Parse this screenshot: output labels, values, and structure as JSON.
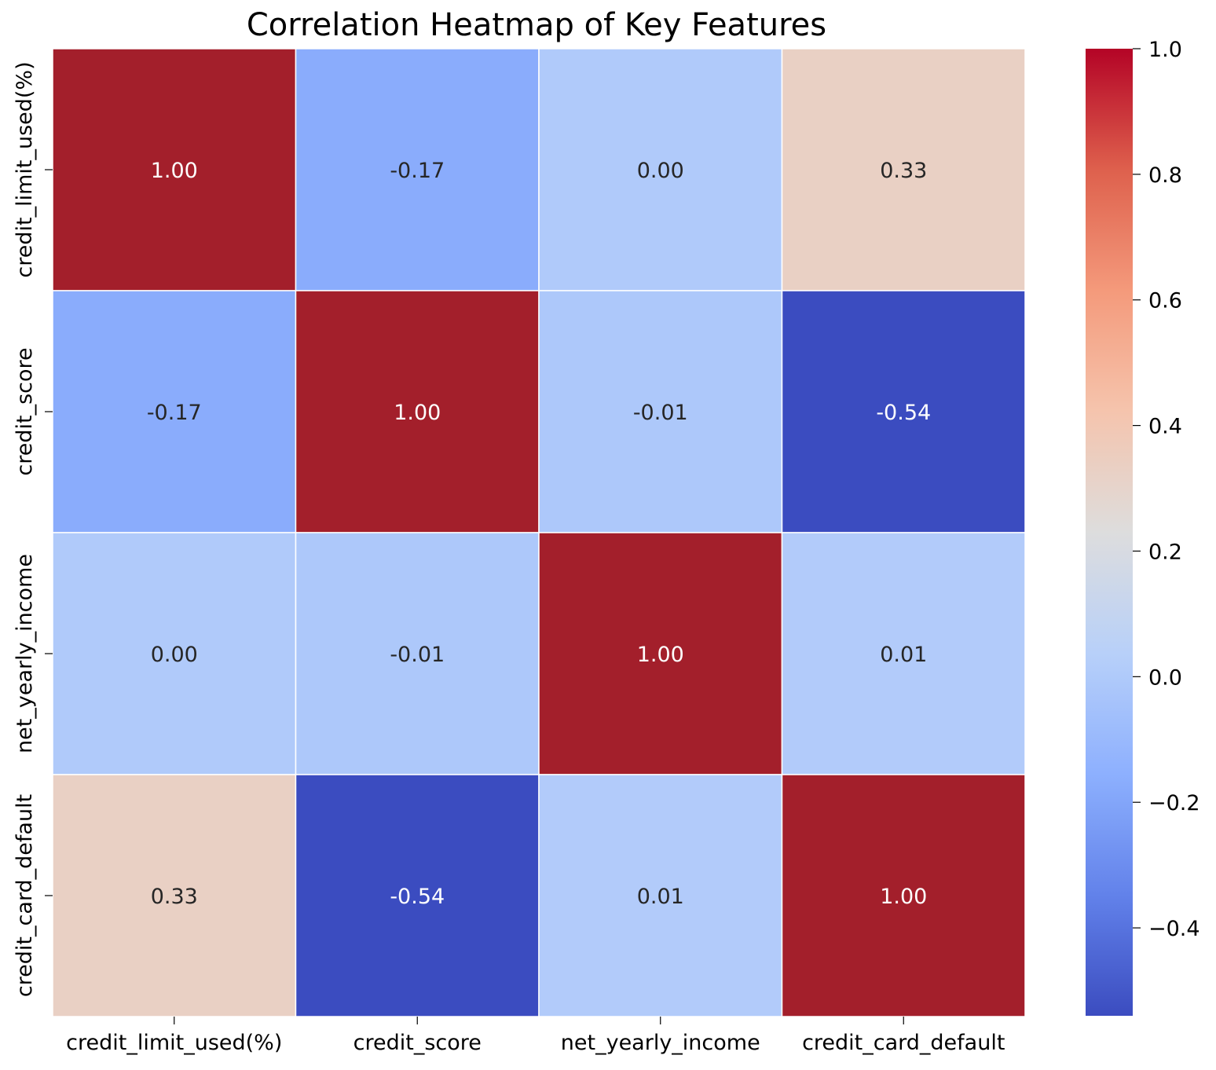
{
  "chart_data": {
    "type": "heatmap",
    "title": "Correlation Heatmap of Key Features",
    "xlabel": "",
    "ylabel": "",
    "row_labels": [
      "credit_limit_used(%)",
      "credit_score",
      "net_yearly_income",
      "credit_card_default"
    ],
    "col_labels": [
      "credit_limit_used(%)",
      "credit_score",
      "net_yearly_income",
      "credit_card_default"
    ],
    "matrix": [
      [
        1.0,
        -0.17,
        0.0,
        0.33
      ],
      [
        -0.17,
        1.0,
        -0.01,
        -0.54
      ],
      [
        0.0,
        -0.01,
        1.0,
        0.01
      ],
      [
        0.33,
        -0.54,
        0.01,
        1.0
      ]
    ],
    "cell_labels": [
      [
        "1.00",
        "-0.17",
        "0.00",
        "0.33"
      ],
      [
        "-0.17",
        "1.00",
        "-0.01",
        "-0.54"
      ],
      [
        "0.00",
        "-0.01",
        "1.00",
        "0.01"
      ],
      [
        "0.33",
        "-0.54",
        "0.01",
        "1.00"
      ]
    ],
    "colormap": "coolwarm",
    "vmin": -0.54,
    "vmax": 1.0,
    "colorbar": {
      "ticks": [
        1.0,
        0.8,
        0.6,
        0.4,
        0.2,
        0.0,
        -0.2,
        -0.4
      ],
      "tick_labels": [
        "1.0",
        "0.8",
        "0.6",
        "0.4",
        "0.2",
        "0.0",
        "−0.2",
        "−0.4"
      ],
      "placement": "right"
    },
    "grid": false
  }
}
